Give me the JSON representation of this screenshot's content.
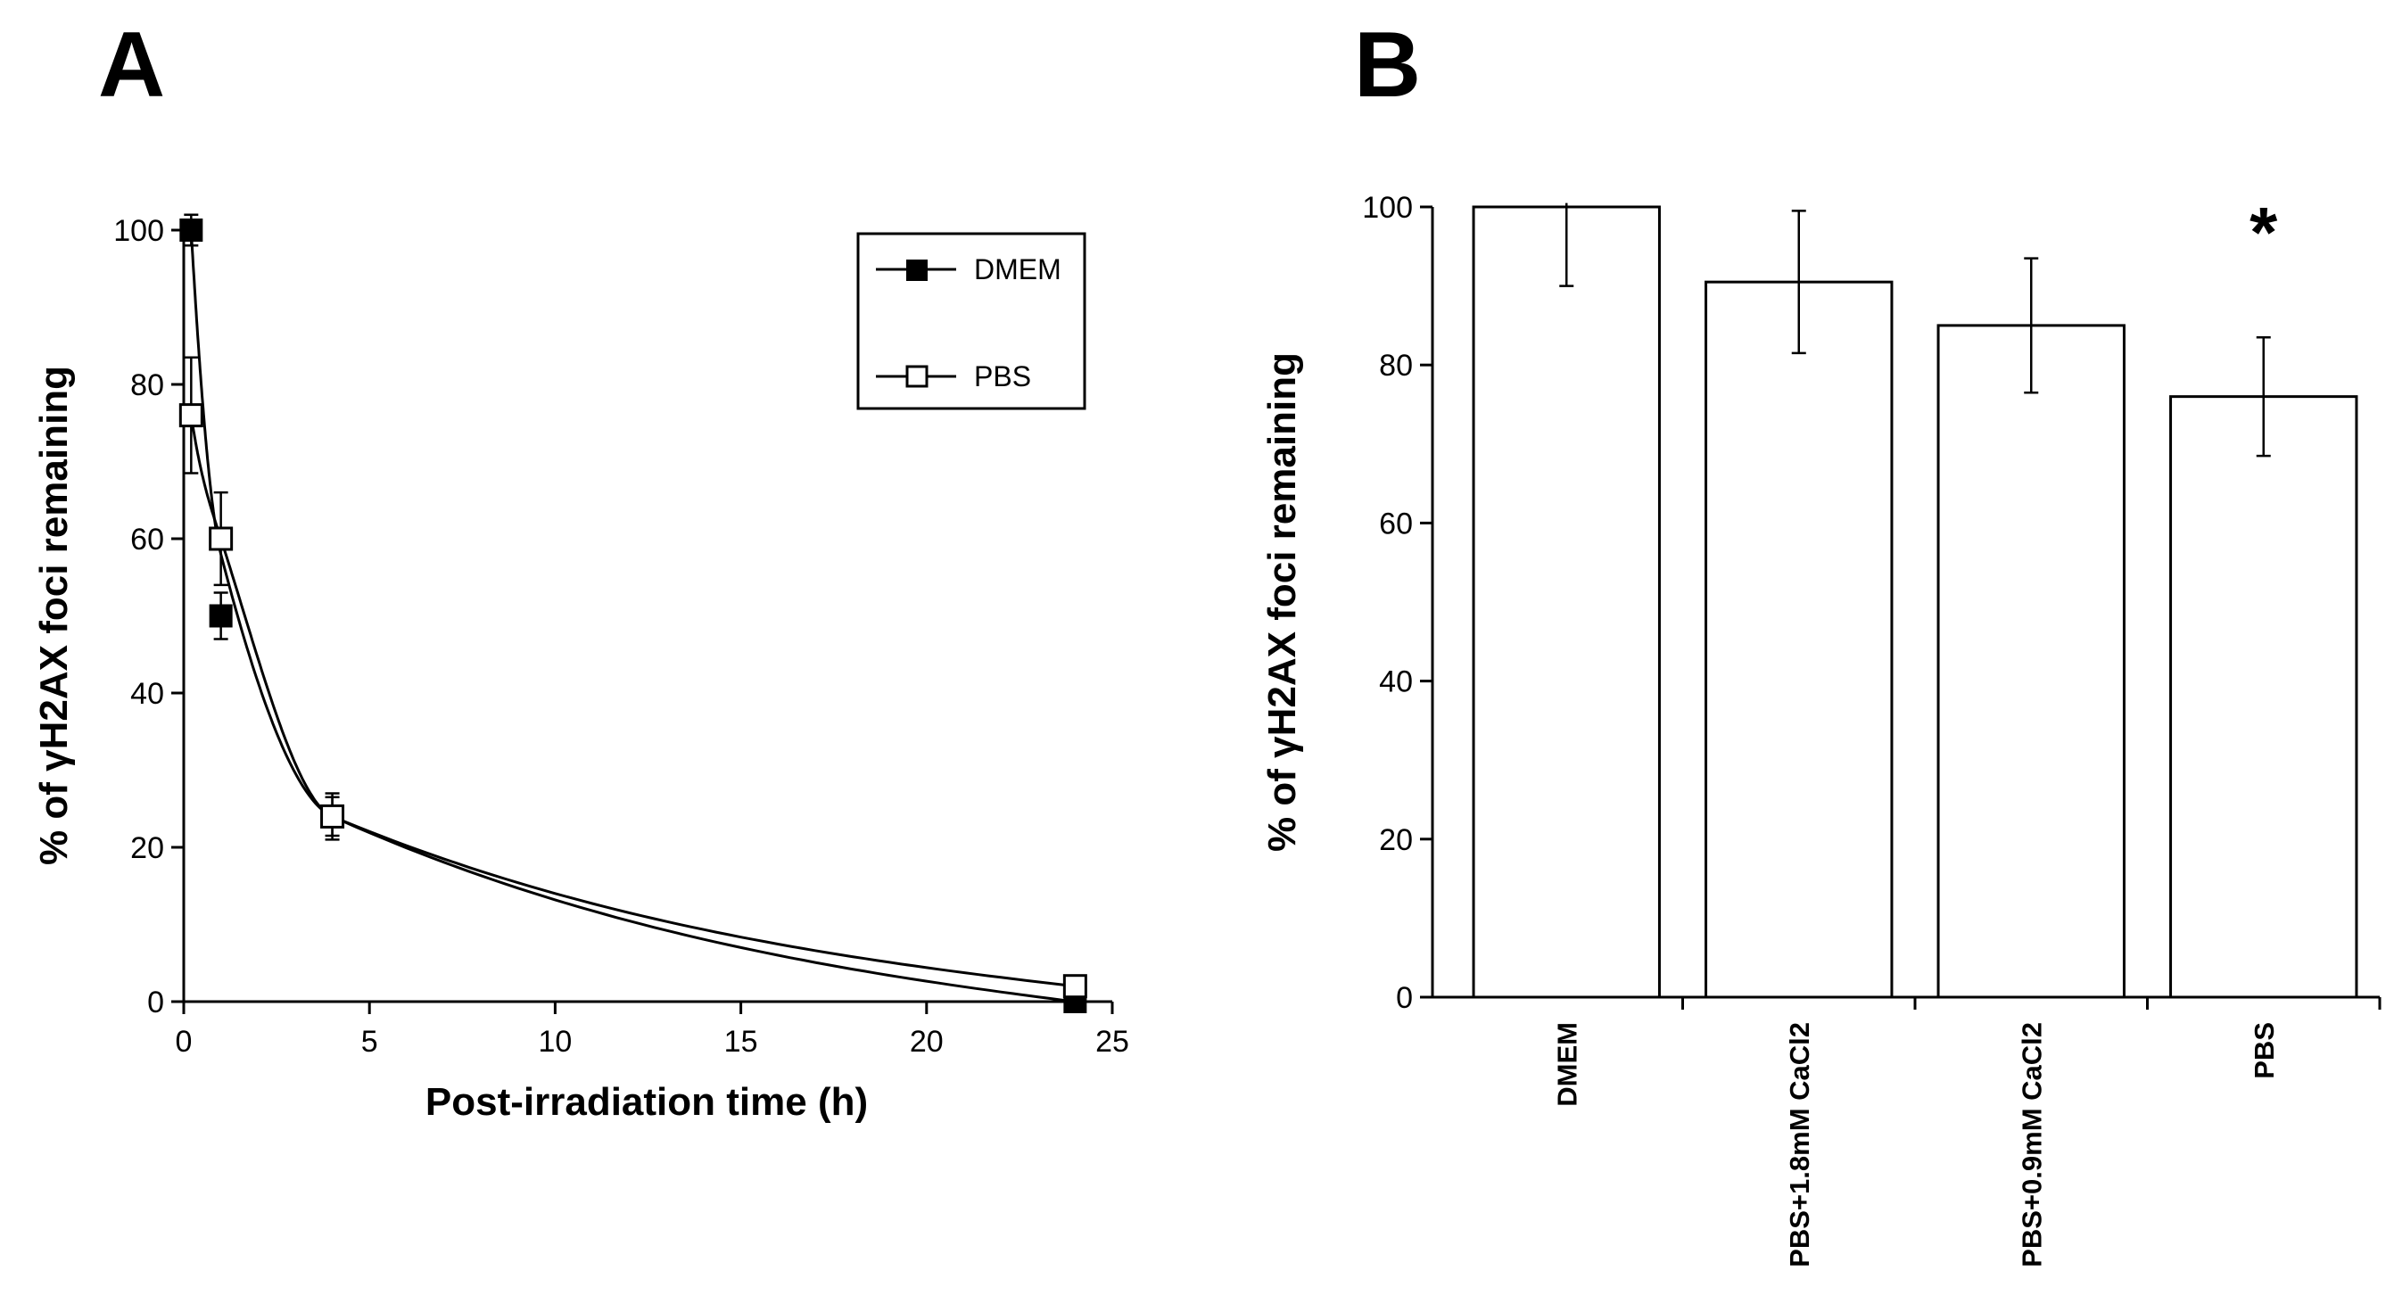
{
  "chart_data": [
    {
      "panel": "A",
      "type": "line",
      "xlabel": "Post-irradiation time (h)",
      "ylabel": "% of γH2AX foci remaining",
      "xlim": [
        0,
        25
      ],
      "ylim": [
        0,
        100
      ],
      "xticks": [
        0,
        5,
        10,
        15,
        20,
        25
      ],
      "yticks": [
        0,
        20,
        40,
        60,
        80,
        100
      ],
      "legend_position": "top-right",
      "series": [
        {
          "name": "DMEM",
          "marker": "filled-square",
          "x": [
            0.2,
            1,
            4,
            24
          ],
          "y": [
            100,
            50,
            24,
            0
          ],
          "err": [
            2,
            3,
            3,
            0
          ]
        },
        {
          "name": "PBS",
          "marker": "open-square",
          "x": [
            0.2,
            1,
            4,
            24
          ],
          "y": [
            76,
            60,
            24,
            2
          ],
          "err": [
            7.5,
            6,
            2.5,
            0
          ]
        }
      ]
    },
    {
      "panel": "B",
      "type": "bar",
      "ylabel": "% of γH2AX foci remaining",
      "ylim": [
        0,
        100
      ],
      "yticks": [
        0,
        20,
        40,
        60,
        80,
        100
      ],
      "categories": [
        "DMEM",
        "PBS+1.8mM CaCl2",
        "PBS+0.9mM CaCl2",
        "PBS"
      ],
      "values": [
        100,
        90.5,
        85,
        76
      ],
      "err": [
        10,
        9,
        8.5,
        7.5
      ],
      "significance": [
        "",
        "",
        "",
        "*"
      ]
    }
  ]
}
